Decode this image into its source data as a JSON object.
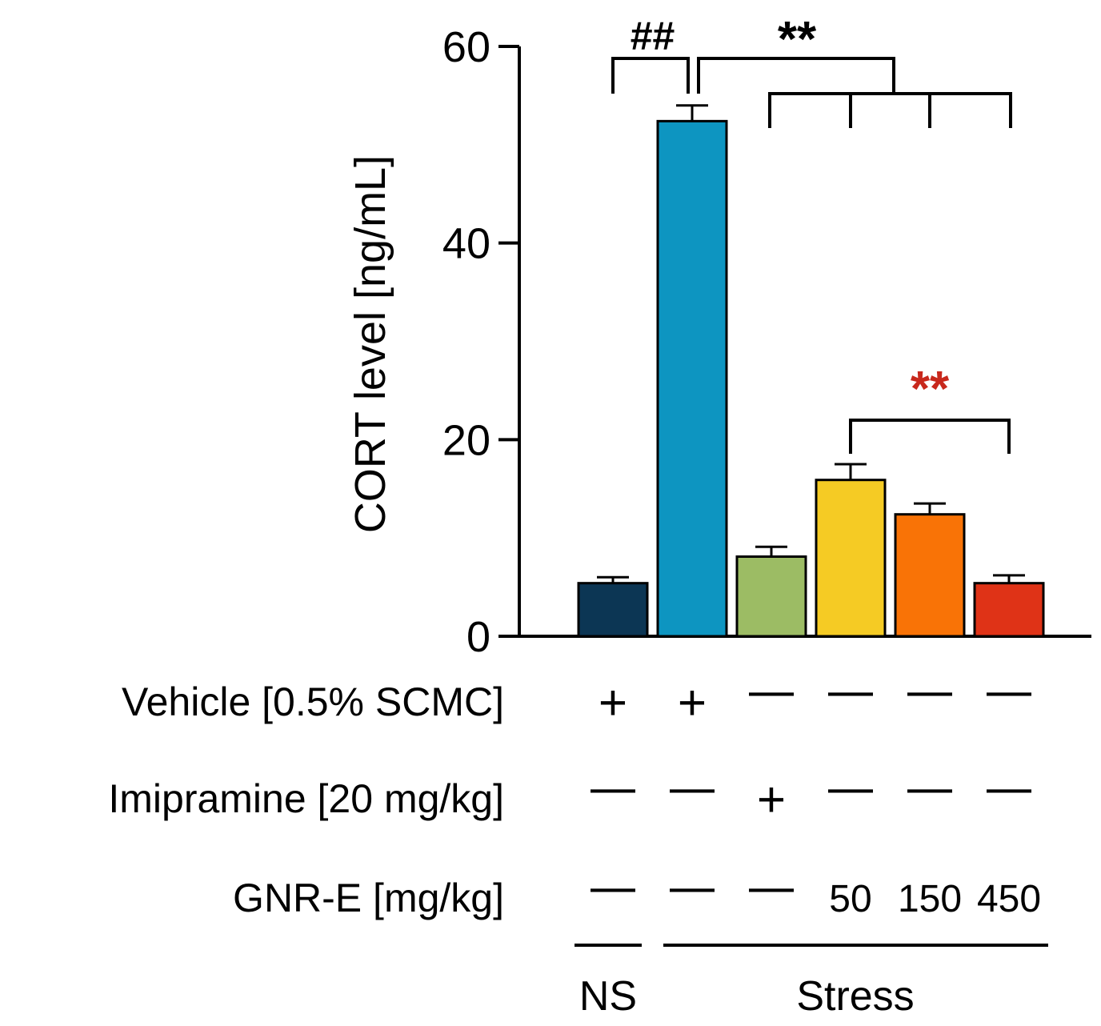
{
  "chart_data": {
    "type": "bar",
    "ylabel": "CORT level [ng/mL]",
    "ylim": [
      0,
      60
    ],
    "yticks": [
      "0",
      "20",
      "40",
      "60"
    ],
    "yticks_values": [
      0,
      20,
      40,
      60
    ],
    "bars": [
      {
        "value": 5.4,
        "error": 0.6,
        "color": "#0c3654"
      },
      {
        "value": 52.4,
        "error": 1.6,
        "color": "#0d95c1"
      },
      {
        "value": 8.1,
        "error": 1.0,
        "color": "#9cbc64"
      },
      {
        "value": 15.9,
        "error": 1.6,
        "color": "#f5cb24"
      },
      {
        "value": 12.4,
        "error": 1.1,
        "color": "#f97306"
      },
      {
        "value": 5.4,
        "error": 0.8,
        "color": "#df3317"
      }
    ],
    "annotations": {
      "hash_label": "##",
      "black_stars": "**",
      "red_stars": "**",
      "red_color": "#c8281c"
    },
    "treatment_rows": [
      {
        "label": "Vehicle [0.5% SCMC]",
        "values": [
          "+",
          "+",
          "—",
          "—",
          "—",
          "—"
        ]
      },
      {
        "label": "Imipramine [20 mg/kg]",
        "values": [
          "—",
          "—",
          "+",
          "—",
          "—",
          "—"
        ]
      },
      {
        "label": "GNR-E [mg/kg]",
        "values": [
          "—",
          "—",
          "—",
          "50",
          "150",
          "450"
        ]
      }
    ],
    "groups": [
      {
        "label": "NS"
      },
      {
        "label": "Stress"
      }
    ]
  }
}
